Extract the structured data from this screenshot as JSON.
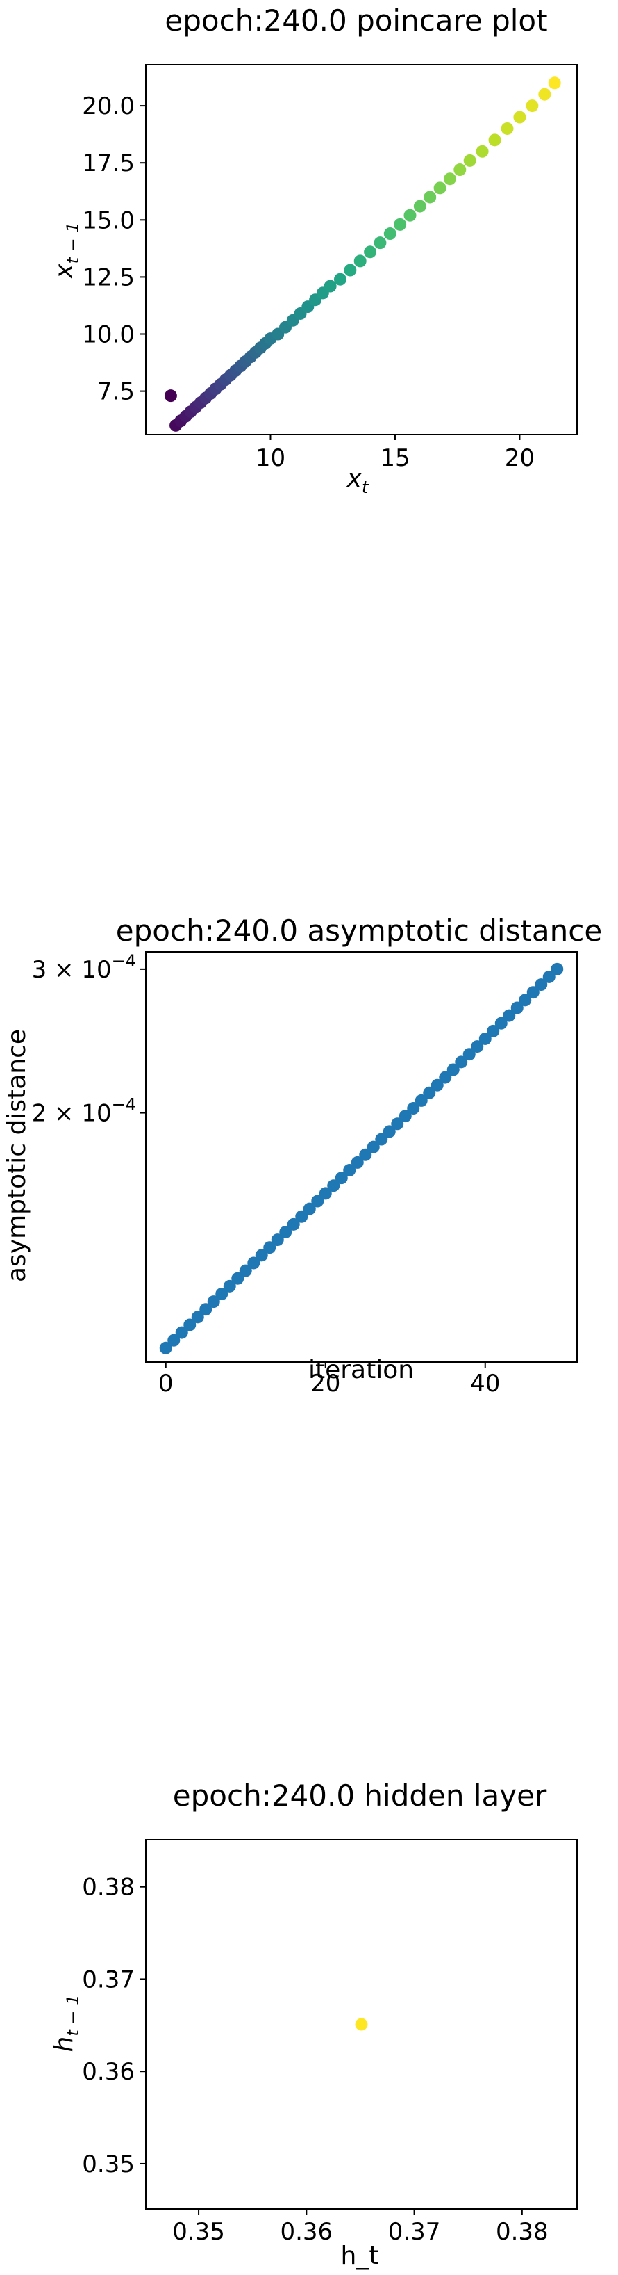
{
  "chart_data": [
    {
      "type": "scatter",
      "title": "epoch:240.0 poincare plot",
      "xlabel": "x_t",
      "ylabel": "x_{t-1}",
      "xlim": [
        5.0,
        22.3
      ],
      "ylim": [
        5.6,
        21.8
      ],
      "xticks": [
        10,
        15,
        20
      ],
      "yticks": [
        7.5,
        10.0,
        12.5,
        15.0,
        17.5,
        20.0
      ],
      "ytick_labels": [
        "7.5",
        "10.0",
        "12.5",
        "15.0",
        "17.5",
        "20.0"
      ],
      "colormap": "viridis",
      "x": [
        6.0,
        6.2,
        6.4,
        6.6,
        6.8,
        7.0,
        7.2,
        7.4,
        7.6,
        7.8,
        8.0,
        8.2,
        8.4,
        8.6,
        8.8,
        9.0,
        9.2,
        9.4,
        9.6,
        9.8,
        10.0,
        10.3,
        10.6,
        10.9,
        11.2,
        11.5,
        11.8,
        12.1,
        12.4,
        12.8,
        13.2,
        13.6,
        14.0,
        14.4,
        14.8,
        15.2,
        15.6,
        16.0,
        16.4,
        16.8,
        17.2,
        17.6,
        18.0,
        18.5,
        19.0,
        19.5,
        20.0,
        20.5,
        21.0,
        21.4
      ],
      "y": [
        7.3,
        6.0,
        6.2,
        6.4,
        6.6,
        6.8,
        7.0,
        7.2,
        7.4,
        7.6,
        7.8,
        8.0,
        8.2,
        8.4,
        8.6,
        8.8,
        9.0,
        9.2,
        9.4,
        9.6,
        9.8,
        10.0,
        10.3,
        10.6,
        10.9,
        11.2,
        11.5,
        11.8,
        12.1,
        12.4,
        12.8,
        13.2,
        13.6,
        14.0,
        14.4,
        14.8,
        15.2,
        15.6,
        16.0,
        16.4,
        16.8,
        17.2,
        17.6,
        18.0,
        18.5,
        19.0,
        19.5,
        20.0,
        20.5,
        21.0
      ]
    },
    {
      "type": "scatter",
      "title": "epoch:240.0 asymptotic distance",
      "xlabel": "iteration",
      "ylabel": "asymptotic distance",
      "yscale": "log",
      "xlim": [
        -2.5,
        51.5
      ],
      "ylim": [
        9.9e-05,
        0.000315
      ],
      "xticks": [
        0,
        20,
        40
      ],
      "yticks": [
        0.0002,
        0.0003
      ],
      "ytick_labels": [
        {
          "base": "2 × 10",
          "exp": "−4"
        },
        {
          "base": "3 × 10",
          "exp": "−4"
        }
      ],
      "color": "#1f77b4",
      "y_start": 0.000103,
      "y_end": 0.0003,
      "n_points": 50
    },
    {
      "type": "scatter",
      "title": "epoch:240.0 hidden layer",
      "xlabel": "h_t",
      "ylabel": "h_{t-1}",
      "xlim": [
        0.3451,
        0.3851
      ],
      "ylim": [
        0.3451,
        0.3851
      ],
      "xticks": [
        0.35,
        0.36,
        0.37,
        0.38
      ],
      "yticks": [
        0.35,
        0.36,
        0.37,
        0.38
      ],
      "xtick_labels": [
        "0.35",
        "0.36",
        "0.37",
        "0.38"
      ],
      "ytick_labels": [
        "0.35",
        "0.36",
        "0.37",
        "0.38"
      ],
      "color": "#fde725",
      "points": [
        {
          "x": 0.3651,
          "y": 0.3651
        }
      ]
    }
  ]
}
